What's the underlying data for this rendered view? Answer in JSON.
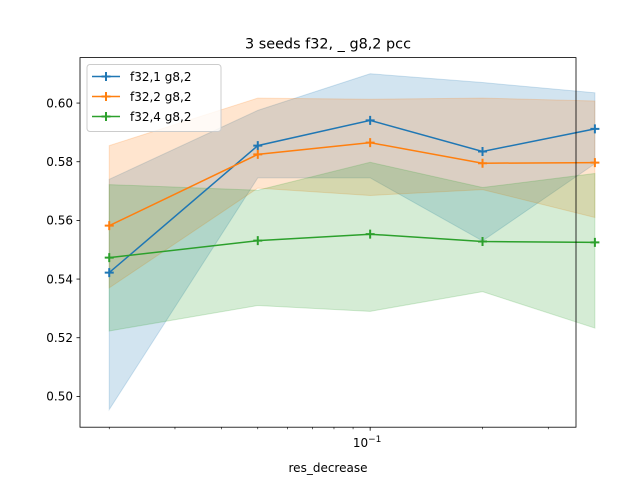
{
  "chart_data": {
    "type": "line",
    "title": "3 seeds f32, _ g8,2 pcc",
    "xlabel": "res_decrease",
    "ylabel": "",
    "xscale": "log",
    "xlim": [
      0.0167,
      0.356
    ],
    "ylim": [
      0.4895,
      0.6155
    ],
    "x": [
      0.02,
      0.05,
      0.1,
      0.2,
      0.4
    ],
    "x_tick_labels": [
      {
        "value": 0.1,
        "base": "10",
        "exp": "−1"
      }
    ],
    "y_ticks": [
      0.5,
      0.52,
      0.54,
      0.56,
      0.58,
      0.6
    ],
    "y_tick_labels": [
      "0.50",
      "0.52",
      "0.54",
      "0.56",
      "0.58",
      "0.60"
    ],
    "grid": false,
    "legend_position": "upper-left",
    "series": [
      {
        "name": "f32,1 g8,2",
        "color": "#1f77b4",
        "values": [
          0.5422,
          0.5855,
          0.5941,
          0.5835,
          0.5912
        ],
        "band_lower": [
          0.4955,
          0.5745,
          0.5745,
          0.553,
          0.5793
        ],
        "band_upper": [
          0.574,
          0.5975,
          0.61,
          0.607,
          0.6035
        ]
      },
      {
        "name": "f32,2 g8,2",
        "color": "#ff7f0e",
        "values": [
          0.5582,
          0.5825,
          0.5865,
          0.5795,
          0.5797
        ],
        "band_lower": [
          0.537,
          0.571,
          0.5685,
          0.5705,
          0.561
        ],
        "band_upper": [
          0.5855,
          0.6017,
          0.6013,
          0.6017,
          0.6007
        ]
      },
      {
        "name": "f32,4 g8,2",
        "color": "#2ca02c",
        "values": [
          0.5473,
          0.5531,
          0.5553,
          0.5528,
          0.5525
        ],
        "band_lower": [
          0.5223,
          0.531,
          0.529,
          0.5357,
          0.5233
        ],
        "band_upper": [
          0.5722,
          0.5703,
          0.5798,
          0.5712,
          0.576
        ]
      }
    ]
  }
}
